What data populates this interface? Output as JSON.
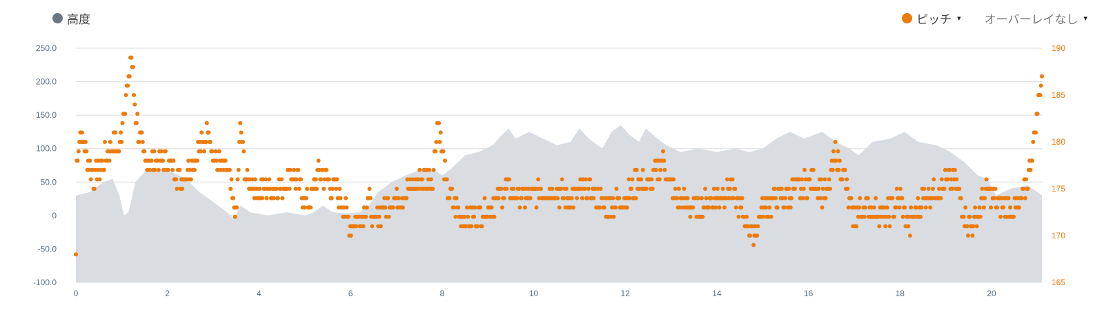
{
  "legend": {
    "elevation_label": "高度",
    "pitch_label": "ピッチ",
    "overlay_label": "オーバーレイなし",
    "caret": "▾"
  },
  "colors": {
    "elevation_fill": "#d9dde2",
    "elevation_legend": "#6b7683",
    "pitch": "#ec7b0c",
    "left_axis_text": "#5a7085",
    "right_axis_text": "#ec7b0c",
    "grid": "#dcdcdc"
  },
  "chart_data": {
    "type": "scatter",
    "x_ticks": [
      0,
      2,
      4,
      6,
      8,
      10,
      12,
      14,
      16,
      18,
      20
    ],
    "xlim": [
      0,
      21.1
    ],
    "y_left": {
      "ticks": [
        "250.0",
        "200.0",
        "150.0",
        "100.0",
        "50.0",
        "0",
        "-50.0",
        "-100.0"
      ],
      "ylim": [
        -100,
        250
      ]
    },
    "y_right": {
      "ticks": [
        "190",
        "185",
        "180",
        "175",
        "170",
        "165"
      ],
      "ylim": [
        165,
        190
      ]
    },
    "grid": true,
    "series": [
      {
        "name": "高度",
        "type": "area",
        "axis": "left",
        "points": [
          [
            0,
            30
          ],
          [
            0.3,
            35
          ],
          [
            0.6,
            50
          ],
          [
            0.8,
            55
          ],
          [
            0.95,
            30
          ],
          [
            1.05,
            0
          ],
          [
            1.15,
            5
          ],
          [
            1.3,
            50
          ],
          [
            1.5,
            65
          ],
          [
            1.8,
            70
          ],
          [
            2.1,
            65
          ],
          [
            2.4,
            55
          ],
          [
            2.7,
            35
          ],
          [
            3.0,
            20
          ],
          [
            3.3,
            5
          ],
          [
            3.45,
            -5
          ],
          [
            3.6,
            15
          ],
          [
            3.8,
            5
          ],
          [
            4.2,
            0
          ],
          [
            4.6,
            5
          ],
          [
            5.0,
            0
          ],
          [
            5.2,
            5
          ],
          [
            5.4,
            15
          ],
          [
            5.6,
            5
          ],
          [
            5.9,
            3
          ],
          [
            6.2,
            5
          ],
          [
            6.4,
            15
          ],
          [
            6.6,
            35
          ],
          [
            6.9,
            50
          ],
          [
            7.2,
            60
          ],
          [
            7.6,
            70
          ],
          [
            7.9,
            65
          ],
          [
            8.0,
            60
          ],
          [
            8.2,
            70
          ],
          [
            8.5,
            90
          ],
          [
            8.8,
            95
          ],
          [
            9.1,
            105
          ],
          [
            9.3,
            120
          ],
          [
            9.45,
            130
          ],
          [
            9.6,
            115
          ],
          [
            9.9,
            125
          ],
          [
            10.2,
            115
          ],
          [
            10.5,
            105
          ],
          [
            10.8,
            110
          ],
          [
            11.0,
            130
          ],
          [
            11.2,
            115
          ],
          [
            11.5,
            100
          ],
          [
            11.7,
            125
          ],
          [
            11.9,
            135
          ],
          [
            12.1,
            120
          ],
          [
            12.3,
            110
          ],
          [
            12.45,
            130
          ],
          [
            12.7,
            115
          ],
          [
            12.9,
            105
          ],
          [
            13.2,
            95
          ],
          [
            13.6,
            100
          ],
          [
            14.0,
            95
          ],
          [
            14.4,
            100
          ],
          [
            14.7,
            95
          ],
          [
            15.0,
            100
          ],
          [
            15.3,
            115
          ],
          [
            15.6,
            125
          ],
          [
            15.9,
            115
          ],
          [
            16.3,
            125
          ],
          [
            16.6,
            110
          ],
          [
            16.9,
            100
          ],
          [
            17.1,
            90
          ],
          [
            17.4,
            110
          ],
          [
            17.8,
            115
          ],
          [
            18.1,
            125
          ],
          [
            18.4,
            110
          ],
          [
            18.8,
            105
          ],
          [
            19.1,
            95
          ],
          [
            19.4,
            80
          ],
          [
            19.7,
            60
          ],
          [
            19.9,
            55
          ],
          [
            20.1,
            30
          ],
          [
            20.4,
            40
          ],
          [
            20.8,
            45
          ],
          [
            21.1,
            30
          ]
        ]
      },
      {
        "name": "ピッチ",
        "type": "scatter",
        "axis": "right",
        "color": "#ec7b0c",
        "anchors": [
          [
            0,
            168
          ],
          [
            0.02,
            178
          ],
          [
            0.1,
            181
          ],
          [
            0.4,
            176
          ],
          [
            0.8,
            180
          ],
          [
            0.95,
            179
          ],
          [
            1.05,
            184
          ],
          [
            1.15,
            186
          ],
          [
            1.2,
            190
          ],
          [
            1.3,
            183
          ],
          [
            1.5,
            178
          ],
          [
            2.0,
            178
          ],
          [
            2.3,
            176
          ],
          [
            2.8,
            180
          ],
          [
            2.9,
            182
          ],
          [
            3.0,
            178
          ],
          [
            3.3,
            177
          ],
          [
            3.5,
            172
          ],
          [
            3.6,
            182
          ],
          [
            3.7,
            176
          ],
          [
            4.0,
            175
          ],
          [
            4.5,
            175
          ],
          [
            4.7,
            177
          ],
          [
            5.0,
            174
          ],
          [
            5.1,
            173
          ],
          [
            5.3,
            177
          ],
          [
            5.5,
            176
          ],
          [
            5.8,
            174
          ],
          [
            6.0,
            171
          ],
          [
            6.2,
            172
          ],
          [
            6.4,
            174
          ],
          [
            6.5,
            171
          ],
          [
            6.7,
            173
          ],
          [
            7.0,
            174
          ],
          [
            7.3,
            175
          ],
          [
            7.6,
            176
          ],
          [
            7.8,
            176
          ],
          [
            7.9,
            183
          ],
          [
            8.1,
            175
          ],
          [
            8.4,
            172
          ],
          [
            8.7,
            172
          ],
          [
            9.0,
            173
          ],
          [
            9.4,
            175
          ],
          [
            9.8,
            174
          ],
          [
            10.3,
            175
          ],
          [
            10.8,
            174
          ],
          [
            11.2,
            175
          ],
          [
            11.6,
            173
          ],
          [
            12.0,
            174
          ],
          [
            12.3,
            176
          ],
          [
            12.5,
            175
          ],
          [
            12.8,
            178
          ],
          [
            13.1,
            174
          ],
          [
            13.5,
            173
          ],
          [
            14.0,
            174
          ],
          [
            14.3,
            175
          ],
          [
            14.6,
            172
          ],
          [
            14.8,
            170
          ],
          [
            15.0,
            173
          ],
          [
            15.4,
            174
          ],
          [
            15.8,
            175
          ],
          [
            16.1,
            176
          ],
          [
            16.4,
            174
          ],
          [
            16.6,
            179
          ],
          [
            16.8,
            176
          ],
          [
            16.95,
            172
          ],
          [
            17.3,
            173
          ],
          [
            17.7,
            172
          ],
          [
            18.0,
            174
          ],
          [
            18.2,
            171
          ],
          [
            18.5,
            174
          ],
          [
            18.8,
            175
          ],
          [
            19.2,
            176
          ],
          [
            19.5,
            171
          ],
          [
            19.7,
            172
          ],
          [
            19.9,
            175
          ],
          [
            20.2,
            173
          ],
          [
            20.6,
            173
          ],
          [
            20.8,
            176
          ],
          [
            21.0,
            183
          ],
          [
            21.1,
            187
          ]
        ],
        "count": 1100
      }
    ]
  }
}
